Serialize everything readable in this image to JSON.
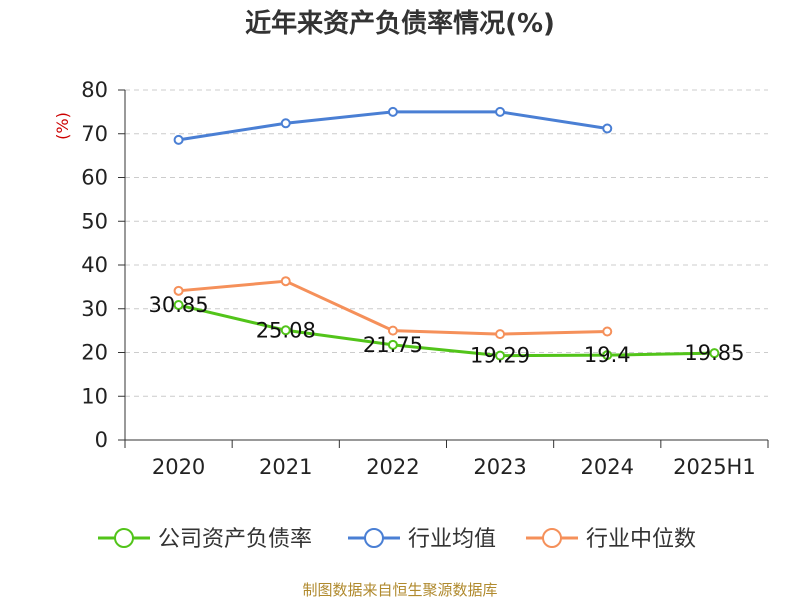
{
  "chart_data": {
    "type": "line",
    "title": "近年来资产负债率情况(%)",
    "ylabel": "(%)",
    "xlabel": "",
    "categories": [
      "2020",
      "2021",
      "2022",
      "2023",
      "2024",
      "2025H1"
    ],
    "ylim": [
      0,
      80
    ],
    "yticks": [
      0,
      10,
      20,
      30,
      40,
      50,
      60,
      70,
      80
    ],
    "grid": "horizontal-dashed",
    "legend_position": "bottom",
    "series": [
      {
        "name": "公司资产负债率",
        "color": "#52c41a",
        "values": [
          30.85,
          25.08,
          21.75,
          19.29,
          19.4,
          19.85
        ],
        "labels": [
          "30.85",
          "25.08",
          "21.75",
          "19.29",
          "19.4",
          "19.85"
        ]
      },
      {
        "name": "行业均值",
        "color": "#4a7fd4",
        "values": [
          68.6,
          72.4,
          75.0,
          75.0,
          71.2,
          null
        ]
      },
      {
        "name": "行业中位数",
        "color": "#f5905a",
        "values": [
          34.1,
          36.3,
          25.0,
          24.2,
          24.8,
          null
        ]
      }
    ],
    "source": "制图数据来自恒生聚源数据库"
  }
}
